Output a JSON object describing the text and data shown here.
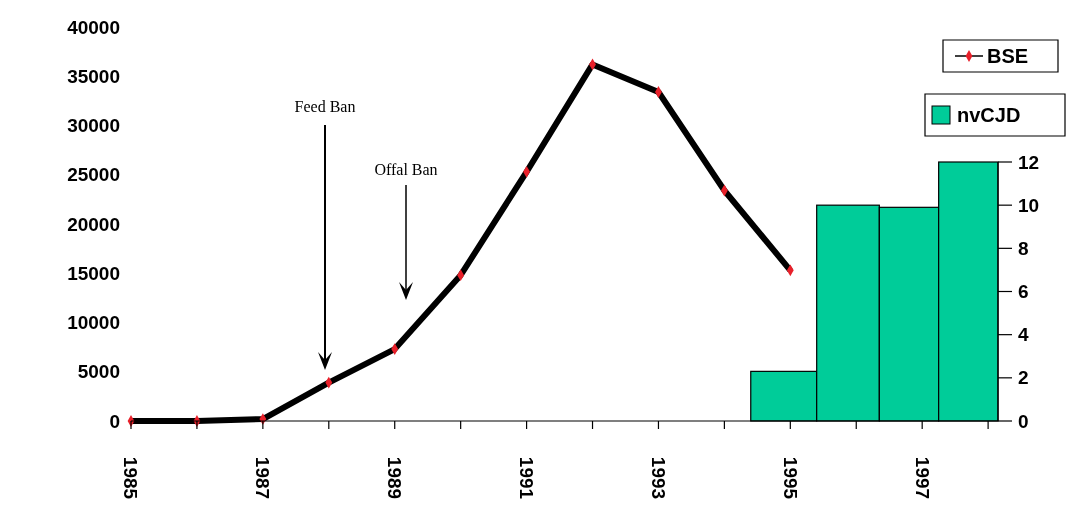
{
  "chart_data": {
    "type": "line",
    "x": [
      1985,
      1986,
      1987,
      1988,
      1989,
      1990,
      1991,
      1992,
      1993,
      1994,
      1995
    ],
    "xlim": [
      1985,
      1998.15
    ],
    "xticks": [
      1985,
      {
        "value": 1986,
        "label": null
      },
      1987,
      {
        "value": 1988,
        "label": null
      },
      1989,
      {
        "value": 1990,
        "label": null
      },
      1991,
      {
        "value": 1992,
        "label": null
      },
      1993,
      {
        "value": 1994,
        "label": null
      },
      1995,
      {
        "value": 1996,
        "label": null
      },
      1997,
      {
        "value": 1998,
        "label": null
      }
    ],
    "ylim": [
      0,
      40000
    ],
    "yticks": [
      0,
      5000,
      10000,
      15000,
      20000,
      25000,
      30000,
      35000,
      40000
    ],
    "y2lim": [
      0,
      12
    ],
    "y2ticks": [
      0,
      2,
      4,
      6,
      8,
      10,
      12
    ],
    "series": [
      {
        "name": "BSE",
        "color": "#000000",
        "marker": "diamond",
        "values": [
          0,
          0,
          200,
          3900,
          7300,
          14800,
          25300,
          36200,
          33400,
          23400,
          15300
        ]
      },
      {
        "name": "nvCJD",
        "type": "bar",
        "axis": "y2",
        "color": "#00cc99",
        "x": [
          1994.9,
          1995.9,
          1996.8,
          1997.7
        ],
        "values": [
          2.3,
          10,
          9.9,
          12
        ]
      }
    ],
    "annotations": [
      "Feed Ban",
      "Offal Ban"
    ],
    "legend": "top right",
    "grid": false
  }
}
